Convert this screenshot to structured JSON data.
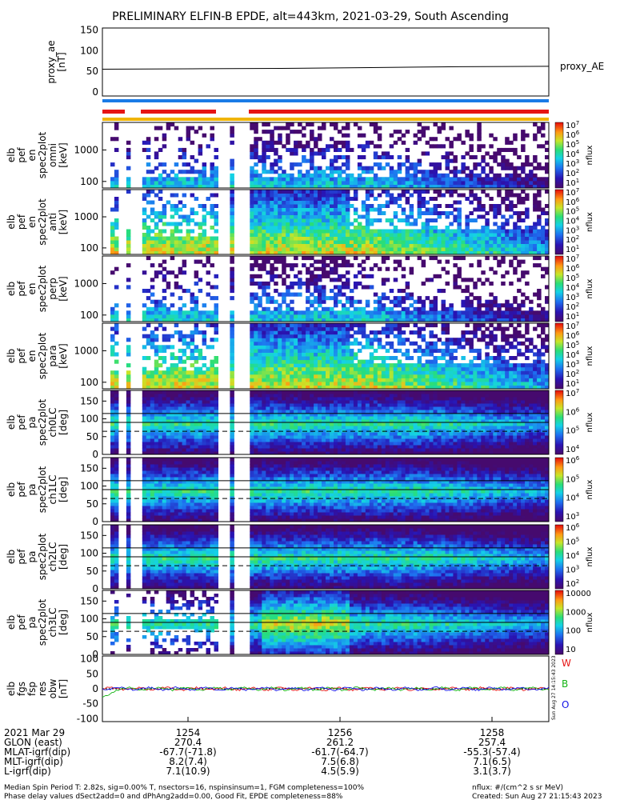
{
  "chart_data": {
    "type": "heatmap",
    "title": "PRELIMINARY ELFIN-B EPDE, alt=443km, 2021-03-29, South Ascending",
    "x_ticks": [
      "1254",
      "1256",
      "1258"
    ],
    "panels": [
      {
        "id": "proxy_ae",
        "kind": "line",
        "ylabel": [
          "proxy_ae",
          "[nT]"
        ],
        "yticks": [
          "150",
          "100",
          "50",
          "0"
        ],
        "ylim": [
          -10,
          155
        ],
        "right_label": "proxy_AE",
        "values": [
          55,
          56,
          57,
          59,
          61,
          62
        ]
      },
      {
        "id": "en_spec_1",
        "kind": "spec_en",
        "ylabel": [
          "elb",
          "pef",
          "en",
          "spec2plot",
          "omni",
          "[keV]"
        ],
        "yticks": [
          "1000",
          "100"
        ],
        "colorbar": {
          "label": "nflux",
          "ticks": [
            "10^7",
            "10^6",
            "10^5",
            "10^4",
            "10^3",
            "10^2",
            "10^1"
          ]
        }
      },
      {
        "id": "en_spec_2",
        "kind": "spec_en",
        "ylabel": [
          "elb",
          "pef",
          "en",
          "spec2plot",
          "anti",
          "[keV]"
        ],
        "yticks": [
          "1000",
          "100"
        ],
        "colorbar": {
          "label": "nflux",
          "ticks": [
            "10^7",
            "10^6",
            "10^5",
            "10^4",
            "10^3",
            "10^2",
            "10^1"
          ]
        }
      },
      {
        "id": "en_spec_3",
        "kind": "spec_en",
        "ylabel": [
          "elb",
          "pef",
          "en",
          "spec2plot",
          "perp",
          "[keV]"
        ],
        "yticks": [
          "1000",
          "100"
        ],
        "colorbar": {
          "label": "nflux",
          "ticks": [
            "10^7",
            "10^6",
            "10^5",
            "10^4",
            "10^3",
            "10^2",
            "10^1"
          ]
        }
      },
      {
        "id": "en_spec_4",
        "kind": "spec_en",
        "ylabel": [
          "elb",
          "pef",
          "en",
          "spec2plot",
          "para",
          "[keV]"
        ],
        "yticks": [
          "1000",
          "100"
        ],
        "colorbar": {
          "label": "nflux",
          "ticks": [
            "10^7",
            "10^6",
            "10^5",
            "10^4",
            "10^3",
            "10^2",
            "10^1"
          ]
        }
      },
      {
        "id": "pa_ch0",
        "kind": "spec_pa",
        "ylabel": [
          "elb",
          "pef",
          "pa",
          "spec2plot",
          "ch0LC",
          "[deg]"
        ],
        "yticks": [
          "150",
          "100",
          "50",
          "0"
        ],
        "colorbar": {
          "label": "nflux",
          "ticks": [
            "10^7",
            "10^6",
            "10^5",
            "10^4"
          ]
        }
      },
      {
        "id": "pa_ch1",
        "kind": "spec_pa",
        "ylabel": [
          "elb",
          "pef",
          "pa",
          "spec2plot",
          "ch1LC",
          "[deg]"
        ],
        "yticks": [
          "150",
          "100",
          "50",
          "0"
        ],
        "colorbar": {
          "label": "nflux",
          "ticks": [
            "10^6",
            "10^5",
            "10^4",
            "10^3"
          ]
        }
      },
      {
        "id": "pa_ch2",
        "kind": "spec_pa",
        "ylabel": [
          "elb",
          "pef",
          "pa",
          "spec2plot",
          "ch2LC",
          "[deg]"
        ],
        "yticks": [
          "150",
          "100",
          "50",
          "0"
        ],
        "colorbar": {
          "label": "nflux",
          "ticks": [
            "10^6",
            "10^5",
            "10^4",
            "10^3",
            "10^2"
          ]
        }
      },
      {
        "id": "pa_ch3",
        "kind": "spec_pa",
        "ylabel": [
          "elb",
          "pef",
          "pa",
          "spec2plot",
          "ch3LC",
          "[deg]"
        ],
        "yticks": [
          "150",
          "100",
          "50",
          "0"
        ],
        "colorbar": {
          "label": "nflux",
          "ticks": [
            "10000",
            "1000",
            "100",
            "10"
          ]
        }
      },
      {
        "id": "fgs",
        "kind": "fgs",
        "ylabel": [
          "elb",
          "fgs",
          "fsp",
          "res",
          "obw",
          "[nT]"
        ],
        "yticks": [
          "100",
          "50",
          "0",
          "-50",
          "-100"
        ],
        "ylim": [
          -110,
          110
        ],
        "legend": [
          "W",
          "B",
          "O"
        ]
      }
    ],
    "footer_rows": [
      {
        "label": "2021 Mar 29",
        "values": [
          "1254",
          "1256",
          "1258"
        ]
      },
      {
        "label": "GLON (east)",
        "values": [
          "270.4",
          "261.2",
          "257.4"
        ]
      },
      {
        "label": "MLAT-igrf(dip)",
        "values": [
          "-67.7(-71.8)",
          "-61.7(-64.7)",
          "-55.3(-57.4)"
        ]
      },
      {
        "label": "MLT-igrf(dip)",
        "values": [
          "8.2(7.4)",
          "7.5(6.8)",
          "7.1(6.5)"
        ]
      },
      {
        "label": "L-igrf(dip)",
        "values": [
          "7.1(10.9)",
          "4.5(5.9)",
          "3.1(3.7)"
        ]
      }
    ],
    "notes": [
      "Median Spin Period T: 2.82s, sig=0.00% T, nsectors=16, nspinsinsum=1, FGM completeness=100%",
      "Phase delay values dSect2add=0 and dPhAng2add=0.00, Good Fit, EPDE completeness=88%"
    ],
    "units_note": "nflux: #/(cm^2 s sr MeV)",
    "created": "Created: Sun Aug 27 21:15:43 2023",
    "side_stamp": "Sun Aug 27 14:15:43 2023"
  }
}
